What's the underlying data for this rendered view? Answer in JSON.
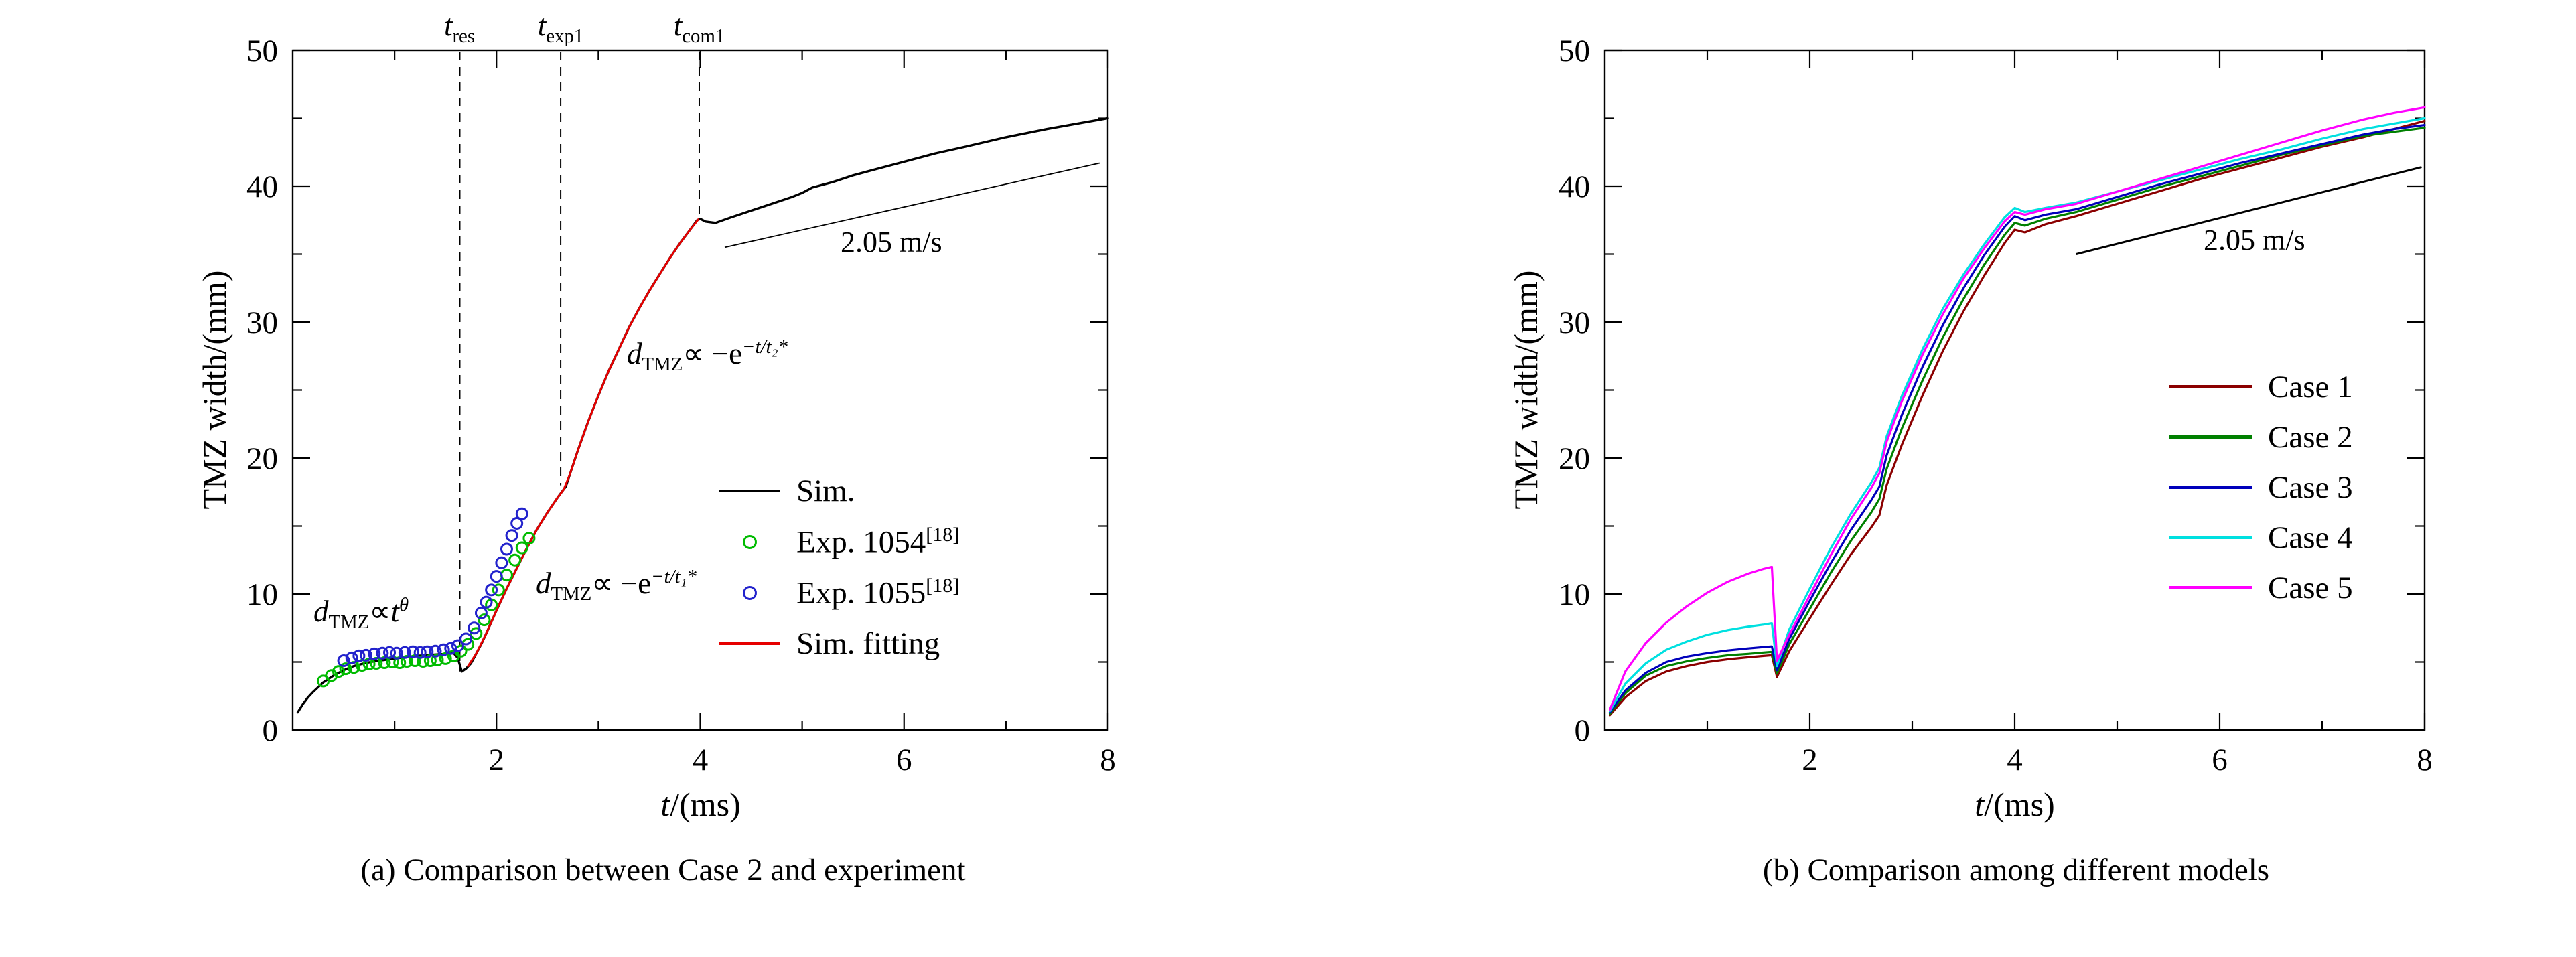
{
  "chart_data": [
    {
      "id": "a",
      "type": "line",
      "caption": "(a) Comparison between Case 2 and experiment",
      "xlabel_it": "t",
      "xlabel_rest": "/(ms)",
      "ylabel": "TMZ width/(mm)",
      "xlim": [
        0,
        8
      ],
      "ylim": [
        0,
        50
      ],
      "xticks_major": [
        2,
        4,
        6,
        8
      ],
      "xticks_minor": [
        1,
        3,
        5,
        7
      ],
      "yticks_major": [
        0,
        10,
        20,
        30,
        40,
        50
      ],
      "yticks_minor": [
        5,
        15,
        25,
        35,
        45
      ],
      "grid": false,
      "series": [
        {
          "name": "Sim.",
          "color": "#000000",
          "width": 3.4,
          "points": [
            [
              0.05,
              1.3
            ],
            [
              0.1,
              1.9
            ],
            [
              0.15,
              2.4
            ],
            [
              0.2,
              2.8
            ],
            [
              0.3,
              3.5
            ],
            [
              0.4,
              4.0
            ],
            [
              0.5,
              4.4
            ],
            [
              0.6,
              4.7
            ],
            [
              0.7,
              4.9
            ],
            [
              0.8,
              5.05
            ],
            [
              0.9,
              5.15
            ],
            [
              1.0,
              5.25
            ],
            [
              1.1,
              5.35
            ],
            [
              1.2,
              5.45
            ],
            [
              1.3,
              5.5
            ],
            [
              1.4,
              5.55
            ],
            [
              1.5,
              5.6
            ],
            [
              1.58,
              5.65
            ],
            [
              1.62,
              5.3
            ],
            [
              1.66,
              4.3
            ],
            [
              1.7,
              4.5
            ],
            [
              1.75,
              4.9
            ],
            [
              1.8,
              5.6
            ],
            [
              1.85,
              6.3
            ],
            [
              1.9,
              7.1
            ],
            [
              2.0,
              8.8
            ],
            [
              2.1,
              10.4
            ],
            [
              2.2,
              11.9
            ],
            [
              2.3,
              13.4
            ],
            [
              2.4,
              14.8
            ],
            [
              2.5,
              16.0
            ],
            [
              2.6,
              17.1
            ],
            [
              2.65,
              17.6
            ],
            [
              2.68,
              17.9
            ],
            [
              2.72,
              18.8
            ],
            [
              2.8,
              20.6
            ],
            [
              2.9,
              22.7
            ],
            [
              3.0,
              24.6
            ],
            [
              3.1,
              26.4
            ],
            [
              3.2,
              28.0
            ],
            [
              3.3,
              29.6
            ],
            [
              3.4,
              31.0
            ],
            [
              3.5,
              32.3
            ],
            [
              3.6,
              33.5
            ],
            [
              3.7,
              34.7
            ],
            [
              3.8,
              35.8
            ],
            [
              3.9,
              36.8
            ],
            [
              3.97,
              37.5
            ],
            [
              4.0,
              37.6
            ],
            [
              4.05,
              37.4
            ],
            [
              4.15,
              37.3
            ],
            [
              4.3,
              37.7
            ],
            [
              4.5,
              38.2
            ],
            [
              4.7,
              38.7
            ],
            [
              4.9,
              39.2
            ],
            [
              5.0,
              39.5
            ],
            [
              5.1,
              39.9
            ],
            [
              5.3,
              40.3
            ],
            [
              5.5,
              40.8
            ],
            [
              5.7,
              41.2
            ],
            [
              6.0,
              41.8
            ],
            [
              6.3,
              42.4
            ],
            [
              6.6,
              42.9
            ],
            [
              7.0,
              43.6
            ],
            [
              7.4,
              44.2
            ],
            [
              7.7,
              44.6
            ],
            [
              8.0,
              45.0
            ]
          ]
        },
        {
          "name": "Sim. fitting",
          "color": "#e60000",
          "width": 3.0,
          "points": [
            [
              1.72,
              4.7
            ],
            [
              1.8,
              5.6
            ],
            [
              1.9,
              7.1
            ],
            [
              2.0,
              8.8
            ],
            [
              2.1,
              10.4
            ],
            [
              2.2,
              11.9
            ],
            [
              2.3,
              13.4
            ],
            [
              2.4,
              14.8
            ],
            [
              2.5,
              16.0
            ],
            [
              2.6,
              17.1
            ],
            [
              2.66,
              17.7
            ],
            [
              2.72,
              18.8
            ],
            [
              2.8,
              20.6
            ],
            [
              2.9,
              22.7
            ],
            [
              3.0,
              24.6
            ],
            [
              3.1,
              26.4
            ],
            [
              3.2,
              28.0
            ],
            [
              3.3,
              29.6
            ],
            [
              3.4,
              31.0
            ],
            [
              3.5,
              32.3
            ],
            [
              3.6,
              33.5
            ],
            [
              3.7,
              34.7
            ],
            [
              3.8,
              35.8
            ],
            [
              3.9,
              36.8
            ],
            [
              3.98,
              37.55
            ]
          ]
        }
      ],
      "scatter": [
        {
          "name": "Exp. 1054",
          "ref_sup": "[18]",
          "color": "#00bb00",
          "points": [
            [
              0.3,
              3.6
            ],
            [
              0.38,
              4.0
            ],
            [
              0.45,
              4.3
            ],
            [
              0.52,
              4.5
            ],
            [
              0.6,
              4.6
            ],
            [
              0.68,
              4.75
            ],
            [
              0.75,
              4.85
            ],
            [
              0.82,
              4.9
            ],
            [
              0.9,
              4.95
            ],
            [
              0.98,
              5.0
            ],
            [
              1.05,
              4.95
            ],
            [
              1.12,
              5.05
            ],
            [
              1.2,
              5.1
            ],
            [
              1.28,
              5.05
            ],
            [
              1.35,
              5.1
            ],
            [
              1.42,
              5.15
            ],
            [
              1.5,
              5.25
            ],
            [
              1.58,
              5.45
            ],
            [
              1.65,
              5.8
            ],
            [
              1.72,
              6.3
            ],
            [
              1.8,
              7.1
            ],
            [
              1.88,
              8.1
            ],
            [
              1.95,
              9.2
            ],
            [
              2.02,
              10.3
            ],
            [
              2.1,
              11.4
            ],
            [
              2.18,
              12.5
            ],
            [
              2.25,
              13.4
            ],
            [
              2.32,
              14.1
            ]
          ]
        },
        {
          "name": "Exp. 1055",
          "ref_sup": "[18]",
          "color": "#2222cc",
          "points": [
            [
              0.5,
              5.1
            ],
            [
              0.58,
              5.3
            ],
            [
              0.65,
              5.45
            ],
            [
              0.72,
              5.5
            ],
            [
              0.8,
              5.6
            ],
            [
              0.88,
              5.65
            ],
            [
              0.95,
              5.7
            ],
            [
              1.02,
              5.65
            ],
            [
              1.1,
              5.7
            ],
            [
              1.18,
              5.75
            ],
            [
              1.25,
              5.7
            ],
            [
              1.32,
              5.75
            ],
            [
              1.4,
              5.8
            ],
            [
              1.48,
              5.9
            ],
            [
              1.55,
              6.0
            ],
            [
              1.62,
              6.2
            ],
            [
              1.7,
              6.7
            ],
            [
              1.78,
              7.5
            ],
            [
              1.85,
              8.6
            ],
            [
              1.9,
              9.4
            ],
            [
              1.95,
              10.3
            ],
            [
              2.0,
              11.3
            ],
            [
              2.05,
              12.3
            ],
            [
              2.1,
              13.3
            ],
            [
              2.15,
              14.3
            ],
            [
              2.2,
              15.2
            ],
            [
              2.25,
              15.9
            ]
          ]
        }
      ],
      "ref_line": {
        "label": "2.05 m/s",
        "color": "#000000",
        "width": 1.8,
        "points": [
          [
            4.24,
            35.5
          ],
          [
            7.92,
            41.7
          ]
        ]
      },
      "event_lines": [
        {
          "label_base": "t",
          "label_sub": "res",
          "x": 1.64,
          "y_to": 4.3
        },
        {
          "label_base": "t",
          "label_sub": "exp1",
          "x": 2.63,
          "y_to": 18.0
        },
        {
          "label_base": "t",
          "label_sub": "com1",
          "x": 3.99,
          "y_to": 37.6
        }
      ],
      "annotations": {
        "power": {
          "d": "d",
          "dsub": "TMZ",
          "mid": "∝",
          "base": "t",
          "sup": "θ"
        },
        "exp1": {
          "d": "d",
          "dsub": "TMZ",
          "mid": "∝ −e",
          "sup": "−t/t₁*"
        },
        "exp2": {
          "d": "d",
          "dsub": "TMZ",
          "mid": "∝ −e",
          "sup": "−t/t₂*"
        }
      },
      "legend": [
        {
          "label": "Sim.",
          "swatch": "line",
          "color": "#000000"
        },
        {
          "label": "Exp. 1054",
          "sup": "[18]",
          "swatch": "marker",
          "color": "#00bb00"
        },
        {
          "label": "Exp. 1055",
          "sup": "[18]",
          "swatch": "marker",
          "color": "#2222cc"
        },
        {
          "label": "Sim. fitting",
          "swatch": "line",
          "color": "#e60000"
        }
      ]
    },
    {
      "id": "b",
      "type": "line",
      "caption": "(b) Comparison among different models",
      "xlabel_it": "t",
      "xlabel_rest": "/(ms)",
      "ylabel": "TMZ width/(mm)",
      "xlim": [
        0,
        8
      ],
      "ylim": [
        0,
        50
      ],
      "xticks_major": [
        2,
        4,
        6,
        8
      ],
      "xticks_minor": [
        1,
        3,
        5,
        7
      ],
      "yticks_major": [
        0,
        10,
        20,
        30,
        40,
        50
      ],
      "yticks_minor": [
        5,
        15,
        25,
        35,
        45
      ],
      "grid": false,
      "x_common": [
        0.05,
        0.2,
        0.4,
        0.6,
        0.8,
        1.0,
        1.2,
        1.4,
        1.55,
        1.63,
        1.68,
        1.8,
        2.0,
        2.2,
        2.4,
        2.6,
        2.68,
        2.75,
        2.9,
        3.1,
        3.3,
        3.5,
        3.7,
        3.9,
        4.0,
        4.1,
        4.3,
        4.6,
        5.0,
        5.4,
        5.8,
        6.2,
        6.6,
        7.0,
        7.4,
        7.7,
        8.0
      ],
      "series": [
        {
          "name": "Case 1",
          "color": "#8b0000",
          "width": 3.2,
          "values": [
            1.1,
            2.4,
            3.6,
            4.3,
            4.7,
            5.0,
            5.2,
            5.35,
            5.45,
            5.5,
            3.9,
            5.8,
            8.2,
            10.6,
            12.9,
            14.9,
            15.8,
            18.0,
            21.0,
            24.6,
            27.9,
            30.8,
            33.4,
            35.8,
            36.8,
            36.6,
            37.2,
            37.8,
            38.7,
            39.6,
            40.5,
            41.3,
            42.1,
            42.9,
            43.6,
            44.2,
            44.8
          ]
        },
        {
          "name": "Case 2",
          "color": "#008000",
          "width": 3.2,
          "values": [
            1.2,
            2.7,
            4.0,
            4.7,
            5.05,
            5.3,
            5.5,
            5.6,
            5.7,
            5.75,
            4.15,
            6.3,
            8.9,
            11.5,
            13.9,
            16.0,
            17.0,
            19.2,
            22.2,
            25.7,
            28.9,
            31.7,
            34.2,
            36.4,
            37.3,
            37.1,
            37.6,
            38.1,
            39.0,
            39.9,
            40.7,
            41.5,
            42.3,
            43.0,
            43.7,
            44.0,
            44.3
          ]
        },
        {
          "name": "Case 3",
          "color": "#0000bb",
          "width": 3.2,
          "values": [
            1.3,
            2.9,
            4.2,
            5.0,
            5.4,
            5.65,
            5.85,
            6.0,
            6.1,
            6.15,
            4.4,
            6.7,
            9.5,
            12.2,
            14.7,
            16.9,
            17.9,
            20.2,
            23.2,
            26.7,
            29.8,
            32.5,
            34.9,
            37.0,
            37.8,
            37.5,
            37.9,
            38.3,
            39.2,
            40.1,
            40.9,
            41.7,
            42.4,
            43.1,
            43.8,
            44.2,
            44.5
          ]
        },
        {
          "name": "Case 4",
          "color": "#00e0e0",
          "width": 3.2,
          "values": [
            1.4,
            3.4,
            4.9,
            5.9,
            6.5,
            7.0,
            7.35,
            7.6,
            7.75,
            7.85,
            4.7,
            7.4,
            10.4,
            13.3,
            15.9,
            18.2,
            19.3,
            21.6,
            24.6,
            28.0,
            31.0,
            33.5,
            35.7,
            37.7,
            38.4,
            38.1,
            38.4,
            38.8,
            39.6,
            40.4,
            41.2,
            42.0,
            42.7,
            43.5,
            44.2,
            44.6,
            45.0
          ]
        },
        {
          "name": "Case 5",
          "color": "#ff00ff",
          "width": 3.2,
          "values": [
            1.5,
            4.3,
            6.4,
            7.9,
            9.1,
            10.1,
            10.9,
            11.5,
            11.85,
            12.0,
            5.1,
            7.0,
            9.9,
            12.8,
            15.5,
            17.8,
            18.9,
            21.2,
            24.2,
            27.6,
            30.6,
            33.2,
            35.4,
            37.4,
            38.1,
            37.9,
            38.3,
            38.7,
            39.6,
            40.5,
            41.4,
            42.3,
            43.2,
            44.1,
            44.9,
            45.4,
            45.8
          ]
        }
      ],
      "ref_line": {
        "label": "2.05 m/s",
        "color": "#000000",
        "width": 3.0,
        "points": [
          [
            4.6,
            35.0
          ],
          [
            7.97,
            41.4
          ]
        ]
      },
      "legend": [
        {
          "label": "Case 1",
          "swatch": "line",
          "color": "#8b0000"
        },
        {
          "label": "Case 2",
          "swatch": "line",
          "color": "#008000"
        },
        {
          "label": "Case 3",
          "swatch": "line",
          "color": "#0000bb"
        },
        {
          "label": "Case 4",
          "swatch": "line",
          "color": "#00e0e0"
        },
        {
          "label": "Case 5",
          "swatch": "line",
          "color": "#ff00ff"
        }
      ]
    }
  ]
}
